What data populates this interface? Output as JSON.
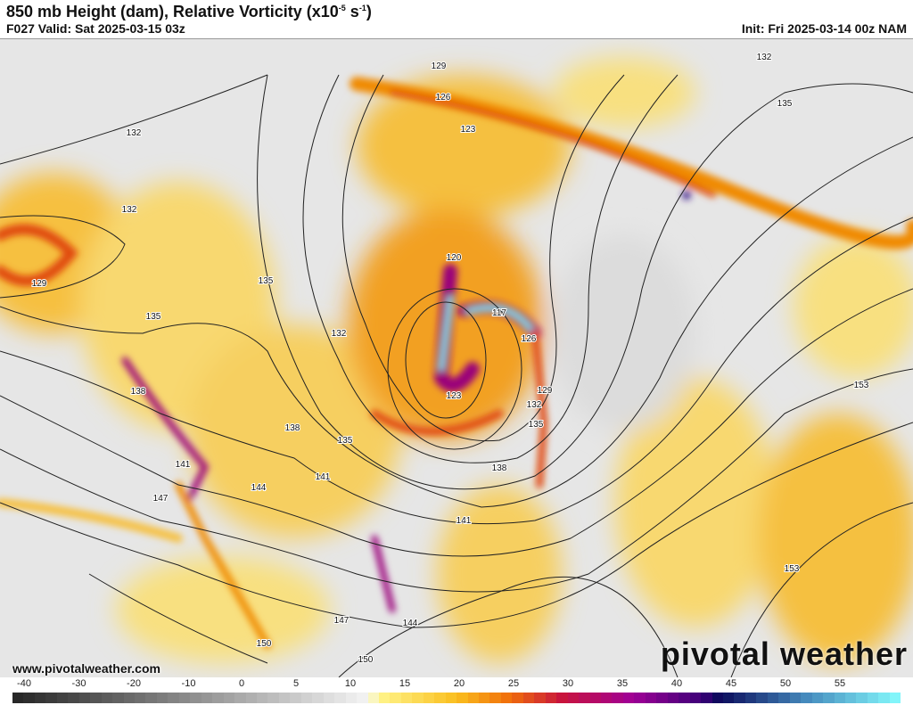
{
  "header": {
    "title": "850 mb Height (dam), Relative Vorticity (x10",
    "title_exp1": "-5",
    "title_mid": " s",
    "title_exp2": "-1",
    "title_end": ")",
    "valid": "F027 Valid: Sat 2025-03-15 03z",
    "init": "Init: Fri 2025-03-14 00z NAM"
  },
  "map": {
    "type": "850 mb height contours over relative vorticity fill",
    "region": "CONUS",
    "contour_labels": [
      {
        "value": "129",
        "lon_lat_hint": "Hudson Bay"
      },
      {
        "value": "132",
        "lon_lat_hint": "Quebec"
      },
      {
        "value": "126",
        "lon_lat_hint": "Manitoba"
      },
      {
        "value": "123",
        "lon_lat_hint": "Manitoba"
      },
      {
        "value": "135",
        "lon_lat_hint": "Quebec"
      },
      {
        "value": "132",
        "lon_lat_hint": "BC"
      },
      {
        "value": "132",
        "lon_lat_hint": "Washington"
      },
      {
        "value": "129",
        "lon_lat_hint": "Pacific"
      },
      {
        "value": "135",
        "lon_lat_hint": "Wyoming"
      },
      {
        "value": "120",
        "lon_lat_hint": "Minnesota"
      },
      {
        "value": "135",
        "lon_lat_hint": "Idaho"
      },
      {
        "value": "117",
        "lon_lat_hint": "Wisconsin"
      },
      {
        "value": "126",
        "lon_lat_hint": "Michigan"
      },
      {
        "value": "132",
        "lon_lat_hint": "Nebraska"
      },
      {
        "value": "138",
        "lon_lat_hint": "Nevada"
      },
      {
        "value": "123",
        "lon_lat_hint": "Iowa"
      },
      {
        "value": "129",
        "lon_lat_hint": "Illinois"
      },
      {
        "value": "132",
        "lon_lat_hint": "Illinois"
      },
      {
        "value": "153",
        "lon_lat_hint": "Atlantic"
      },
      {
        "value": "138",
        "lon_lat_hint": "Colorado"
      },
      {
        "value": "135",
        "lon_lat_hint": "Kansas"
      },
      {
        "value": "135",
        "lon_lat_hint": "Missouri"
      },
      {
        "value": "141",
        "lon_lat_hint": "Arizona"
      },
      {
        "value": "141",
        "lon_lat_hint": "New Mexico"
      },
      {
        "value": "138",
        "lon_lat_hint": "Arkansas"
      },
      {
        "value": "144",
        "lon_lat_hint": "Arizona"
      },
      {
        "value": "147",
        "lon_lat_hint": "Baja"
      },
      {
        "value": "141",
        "lon_lat_hint": "Texas"
      },
      {
        "value": "153",
        "lon_lat_hint": "Atlantic"
      },
      {
        "value": "147",
        "lon_lat_hint": "Mexico"
      },
      {
        "value": "144",
        "lon_lat_hint": "Gulf"
      },
      {
        "value": "150",
        "lon_lat_hint": "Pacific"
      },
      {
        "value": "150",
        "lon_lat_hint": "Mexico"
      }
    ],
    "minimum_height_dam": 117
  },
  "footer": {
    "url": "www.pivotalweather.com",
    "logo": "pivotal weather"
  },
  "colorbar": {
    "ticks": [
      "-40",
      "-30",
      "-20",
      "-10",
      "0",
      "5",
      "10",
      "15",
      "20",
      "25",
      "30",
      "35",
      "40",
      "45",
      "50",
      "55"
    ],
    "range": [
      -40,
      60
    ],
    "colors": {
      "negative": "#2b2b2b",
      "zero": "#ffffff",
      "low_pos": "#fff38a",
      "mid": "#f08a00",
      "high": "#c0007a",
      "very_high": "#1a0a6e",
      "max": "#80f0f8"
    }
  }
}
